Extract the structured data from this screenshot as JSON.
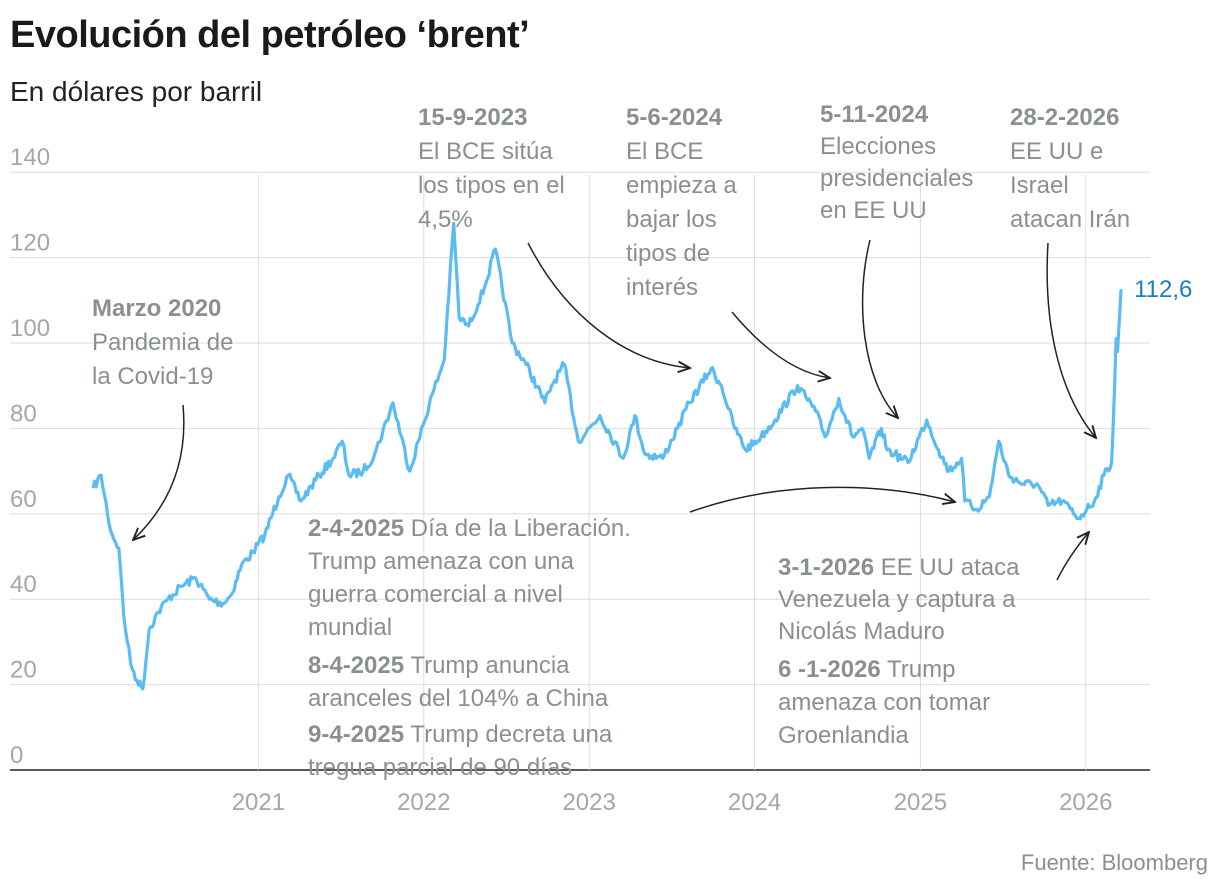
{
  "title": "Evolución del petróleo ‘brent’",
  "subtitle": "En dólares por barril",
  "source": "Fuente: Bloomberg",
  "chart_data": {
    "type": "line",
    "title": "Evolución del petróleo ‘brent’",
    "ylabel": "En dólares por barril",
    "xlabel": "",
    "x_ticks": [
      "2021",
      "2022",
      "2023",
      "2024",
      "2025",
      "2026"
    ],
    "y_ticks": [
      "0",
      "20",
      "40",
      "60",
      "80",
      "100",
      "120",
      "140"
    ],
    "ylim": [
      0,
      140
    ],
    "xlim": [
      "2020-01-02",
      "2026-03-20"
    ],
    "grid": true,
    "line_color": "#5bbcf2",
    "end_label": "112,6",
    "series": [
      {
        "x": [
          "2020-01-02",
          "2020-01-20",
          "2020-02-10",
          "2020-02-28",
          "2020-03-10",
          "2020-03-25",
          "2020-04-08",
          "2020-04-21",
          "2020-05-05",
          "2020-05-25",
          "2020-06-15",
          "2020-07-15",
          "2020-08-15",
          "2020-09-15",
          "2020-10-15",
          "2020-11-02",
          "2020-11-25",
          "2020-12-20",
          "2021-01-15",
          "2021-02-15",
          "2021-03-08",
          "2021-04-05",
          "2021-05-15",
          "2021-06-15",
          "2021-07-05",
          "2021-07-20",
          "2021-08-20",
          "2021-09-15",
          "2021-10-25",
          "2021-12-01",
          "2021-12-20",
          "2022-01-20",
          "2022-02-15",
          "2022-03-08",
          "2022-03-20",
          "2022-04-10",
          "2022-05-15",
          "2022-06-08",
          "2022-07-15",
          "2022-08-15",
          "2022-09-25",
          "2022-10-10",
          "2022-11-07",
          "2022-12-08",
          "2023-01-25",
          "2023-03-17",
          "2023-04-12",
          "2023-05-04",
          "2023-06-12",
          "2023-07-15",
          "2023-08-10",
          "2023-09-27",
          "2023-10-20",
          "2023-11-15",
          "2023-12-12",
          "2024-01-15",
          "2024-02-15",
          "2024-04-05",
          "2024-05-15",
          "2024-06-05",
          "2024-07-05",
          "2024-08-05",
          "2024-08-25",
          "2024-09-10",
          "2024-10-07",
          "2024-10-20",
          "2024-11-05",
          "2024-12-05",
          "2025-01-15",
          "2025-02-10",
          "2025-03-05",
          "2025-04-02",
          "2025-04-09",
          "2025-05-05",
          "2025-06-02",
          "2025-06-23",
          "2025-07-15",
          "2025-08-15",
          "2025-09-15",
          "2025-10-10",
          "2025-11-10",
          "2025-12-16",
          "2026-01-03",
          "2026-01-20",
          "2026-02-10",
          "2026-02-27",
          "2026-03-03",
          "2026-03-09",
          "2026-03-12",
          "2026-03-20"
        ],
        "y": [
          66,
          69,
          56,
          52,
          36,
          25,
          21,
          19,
          33,
          37,
          40,
          43,
          45,
          40,
          39,
          41,
          48,
          51,
          55,
          64,
          69,
          63,
          69,
          73,
          77,
          69,
          70,
          74,
          86,
          70,
          77,
          88,
          96,
          128,
          106,
          104,
          113,
          122,
          100,
          95,
          86,
          90,
          95,
          77,
          83,
          73,
          83,
          74,
          73,
          80,
          86,
          94,
          90,
          81,
          75,
          78,
          82,
          90,
          84,
          78,
          87,
          78,
          80,
          73,
          80,
          75,
          74,
          72,
          82,
          75,
          70,
          73,
          63,
          61,
          64,
          77,
          69,
          67,
          67,
          62,
          63,
          59,
          61,
          63,
          69,
          72,
          82,
          101,
          98,
          112.6
        ]
      }
    ],
    "annotations": [
      {
        "bold": "Marzo 2020",
        "text": [
          "Pandemia de",
          "la Covid-19"
        ]
      },
      {
        "bold": "15-9-2023",
        "text": [
          "El BCE sitúa",
          "los tipos en el",
          "4,5%"
        ]
      },
      {
        "bold": "5-6-2024",
        "text": [
          "El BCE",
          "empieza a",
          "bajar los",
          "tipos de",
          "interés"
        ]
      },
      {
        "bold": "5-11-2024",
        "text": [
          "Elecciones",
          "presidenciales",
          "en EE UU"
        ]
      },
      {
        "bold": "28-2-2026",
        "text": [
          "EE UU e",
          "Israel",
          "atacan Irán"
        ]
      },
      {
        "bold": "2-4-2025",
        "text": [
          " Día de la Liberación.",
          "Trump amenaza con una",
          "guerra comercial a nivel",
          "mundial"
        ]
      },
      {
        "bold": "8-4-2025",
        "text": [
          " Trump anuncia",
          "aranceles del 104% a China"
        ]
      },
      {
        "bold": "9-4-2025",
        "text": [
          " Trump decreta una",
          "tregua parcial de 90 días"
        ]
      },
      {
        "bold": "3-1-2026",
        "text": [
          " EE UU ataca",
          "Venezuela y captura a",
          "Nicolás Maduro"
        ]
      },
      {
        "bold": "6 -1-2026",
        "text": [
          " Trump",
          "amenaza con tomar",
          "Groenlandia"
        ]
      }
    ]
  }
}
